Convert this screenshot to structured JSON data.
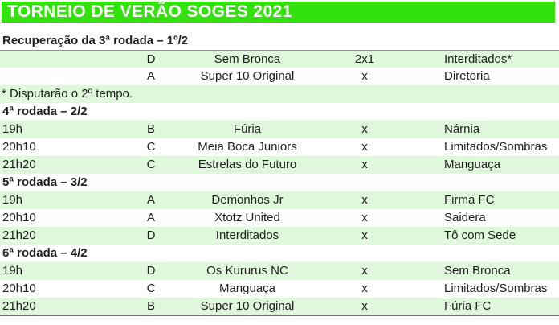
{
  "title": "TORNEIO DE VERÃO SOGES 2021",
  "colors": {
    "title_bar_background": "#33E20D",
    "title_text": "#FFFFFF",
    "row_shade": "#DFF7DB",
    "body_text": "#1F1F1F",
    "table_border": "#6F6F6F"
  },
  "sections": [
    {
      "heading": "Recuperação da 3ª rodada – 1º/2",
      "rows": [
        {
          "time": "",
          "group": "D",
          "home": "Sem Bronca",
          "score": "2x1",
          "away": "Interditados*",
          "shade": true
        },
        {
          "time": "",
          "group": "A",
          "home": "Super 10 Original",
          "score": "x",
          "away": "Diretoria",
          "shade": false
        }
      ],
      "note": "* Disputarão o 2º tempo."
    },
    {
      "heading": "4ª rodada – 2/2",
      "rows": [
        {
          "time": "19h",
          "group": "B",
          "home": "Fúria",
          "score": "x",
          "away": "Nárnia",
          "shade": true
        },
        {
          "time": "20h10",
          "group": "C",
          "home": "Meia Boca Juniors",
          "score": "x",
          "away": "Limitados/Sombras",
          "shade": false
        },
        {
          "time": "21h20",
          "group": "C",
          "home": "Estrelas do Futuro",
          "score": "x",
          "away": "Manguaça",
          "shade": true
        }
      ]
    },
    {
      "heading": "5ª rodada – 3/2",
      "rows": [
        {
          "time": "19h",
          "group": "A",
          "home": "Demonhos Jr",
          "score": "x",
          "away": "Firma FC",
          "shade": true
        },
        {
          "time": "20h10",
          "group": "A",
          "home": "Xtotz United",
          "score": "x",
          "away": "Saidera",
          "shade": false
        },
        {
          "time": "21h20",
          "group": "D",
          "home": "Interditados",
          "score": "x",
          "away": "Tô com Sede",
          "shade": true
        }
      ]
    },
    {
      "heading": "6ª rodada – 4/2",
      "rows": [
        {
          "time": "19h",
          "group": "D",
          "home": "Os Kururus NC",
          "score": "x",
          "away": "Sem Bronca",
          "shade": true
        },
        {
          "time": "20h10",
          "group": "C",
          "home": "Manguaça",
          "score": "x",
          "away": "Limitados/Sombras",
          "shade": false
        },
        {
          "time": "21h20",
          "group": "B",
          "home": "Super 10 Original",
          "score": "x",
          "away": "Fúria FC",
          "shade": true
        }
      ]
    }
  ]
}
